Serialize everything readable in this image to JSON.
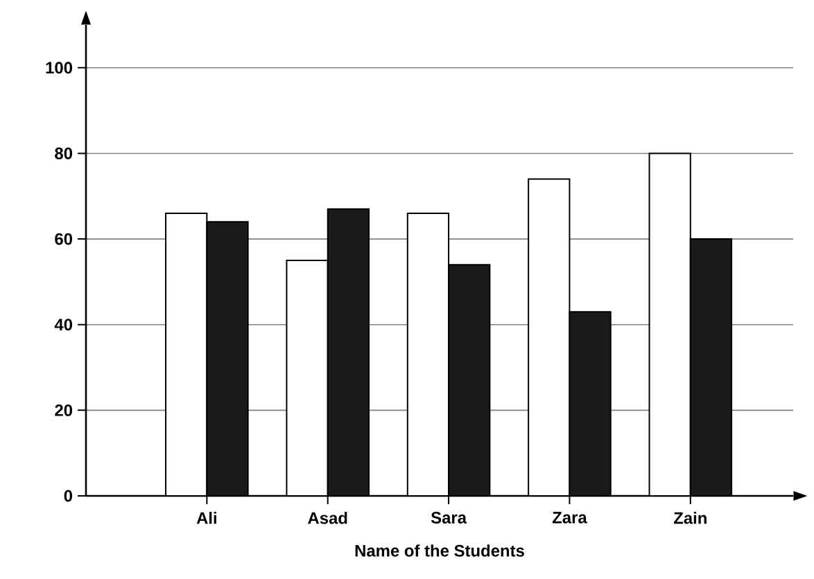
{
  "chart_data": {
    "type": "bar",
    "xlabel": "Name of the Students",
    "categories": [
      "Ali",
      "Asad",
      "Sara",
      "Zara",
      "Zain"
    ],
    "series": [
      {
        "color": "#ffffff",
        "values": [
          66,
          55,
          66,
          74,
          80
        ]
      },
      {
        "color": "#1a1a1a",
        "values": [
          64,
          67,
          54,
          43,
          60
        ]
      }
    ],
    "ylim": [
      0,
      110
    ],
    "yticks": [
      0,
      20,
      40,
      60,
      80,
      100
    ],
    "grid": "y"
  }
}
